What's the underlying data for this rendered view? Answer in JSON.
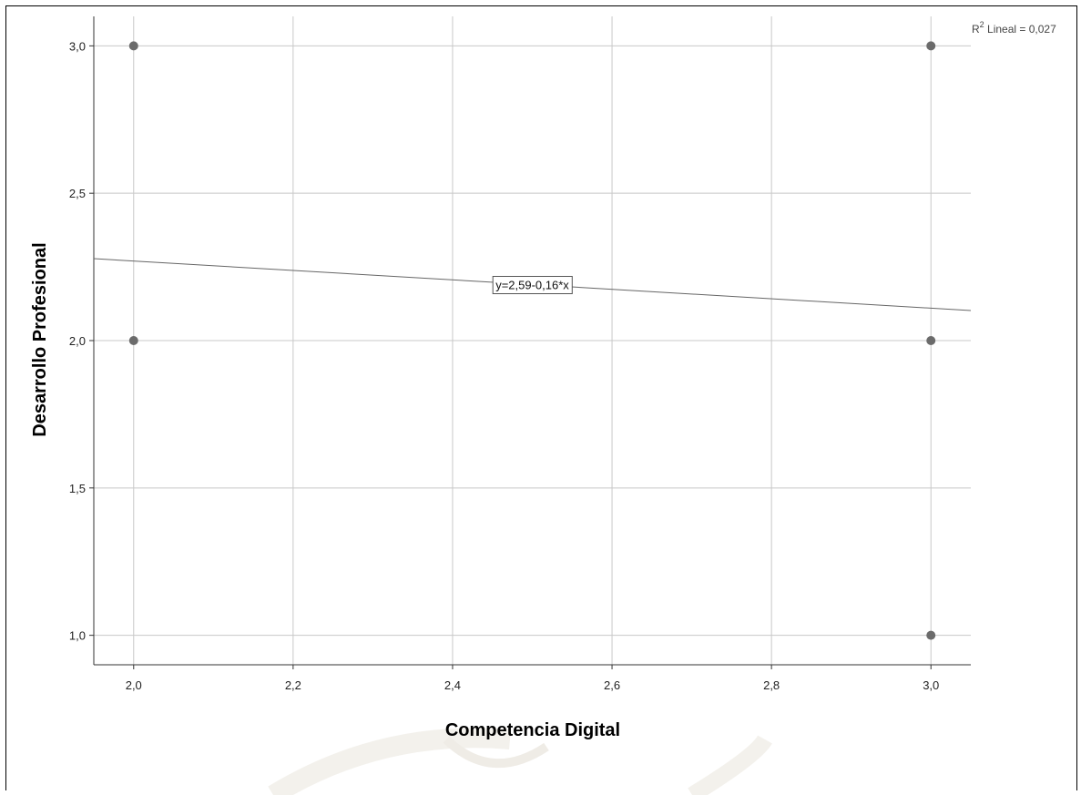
{
  "chart_data": {
    "type": "scatter",
    "xlabel": "Competencia Digital",
    "ylabel": "Desarrollo Profesional",
    "xlim": [
      1.95,
      3.05
    ],
    "ylim": [
      0.9,
      3.1
    ],
    "x_ticks": [
      "2,0",
      "2,2",
      "2,4",
      "2,6",
      "2,8",
      "3,0"
    ],
    "x_tick_values": [
      2.0,
      2.2,
      2.4,
      2.6,
      2.8,
      3.0
    ],
    "y_ticks": [
      "1,0",
      "1,5",
      "2,0",
      "2,5",
      "3,0"
    ],
    "y_tick_values": [
      1.0,
      1.5,
      2.0,
      2.5,
      3.0
    ],
    "grid": true,
    "points": [
      {
        "x": 2.0,
        "y": 3.0
      },
      {
        "x": 2.0,
        "y": 2.0
      },
      {
        "x": 3.0,
        "y": 3.0
      },
      {
        "x": 3.0,
        "y": 2.0
      },
      {
        "x": 3.0,
        "y": 1.0
      }
    ],
    "fit_line": {
      "intercept": 2.59,
      "slope": -0.16,
      "label": "y=2,59-0,16*x",
      "label_x": 2.5
    },
    "r2_label": {
      "prefix": "R",
      "sup": "2",
      "text": " Lineal = 0,027"
    },
    "colors": {
      "point": "#6b6b6b",
      "grid": "#c8c8c8",
      "line": "#666666",
      "axis": "#333333"
    }
  }
}
